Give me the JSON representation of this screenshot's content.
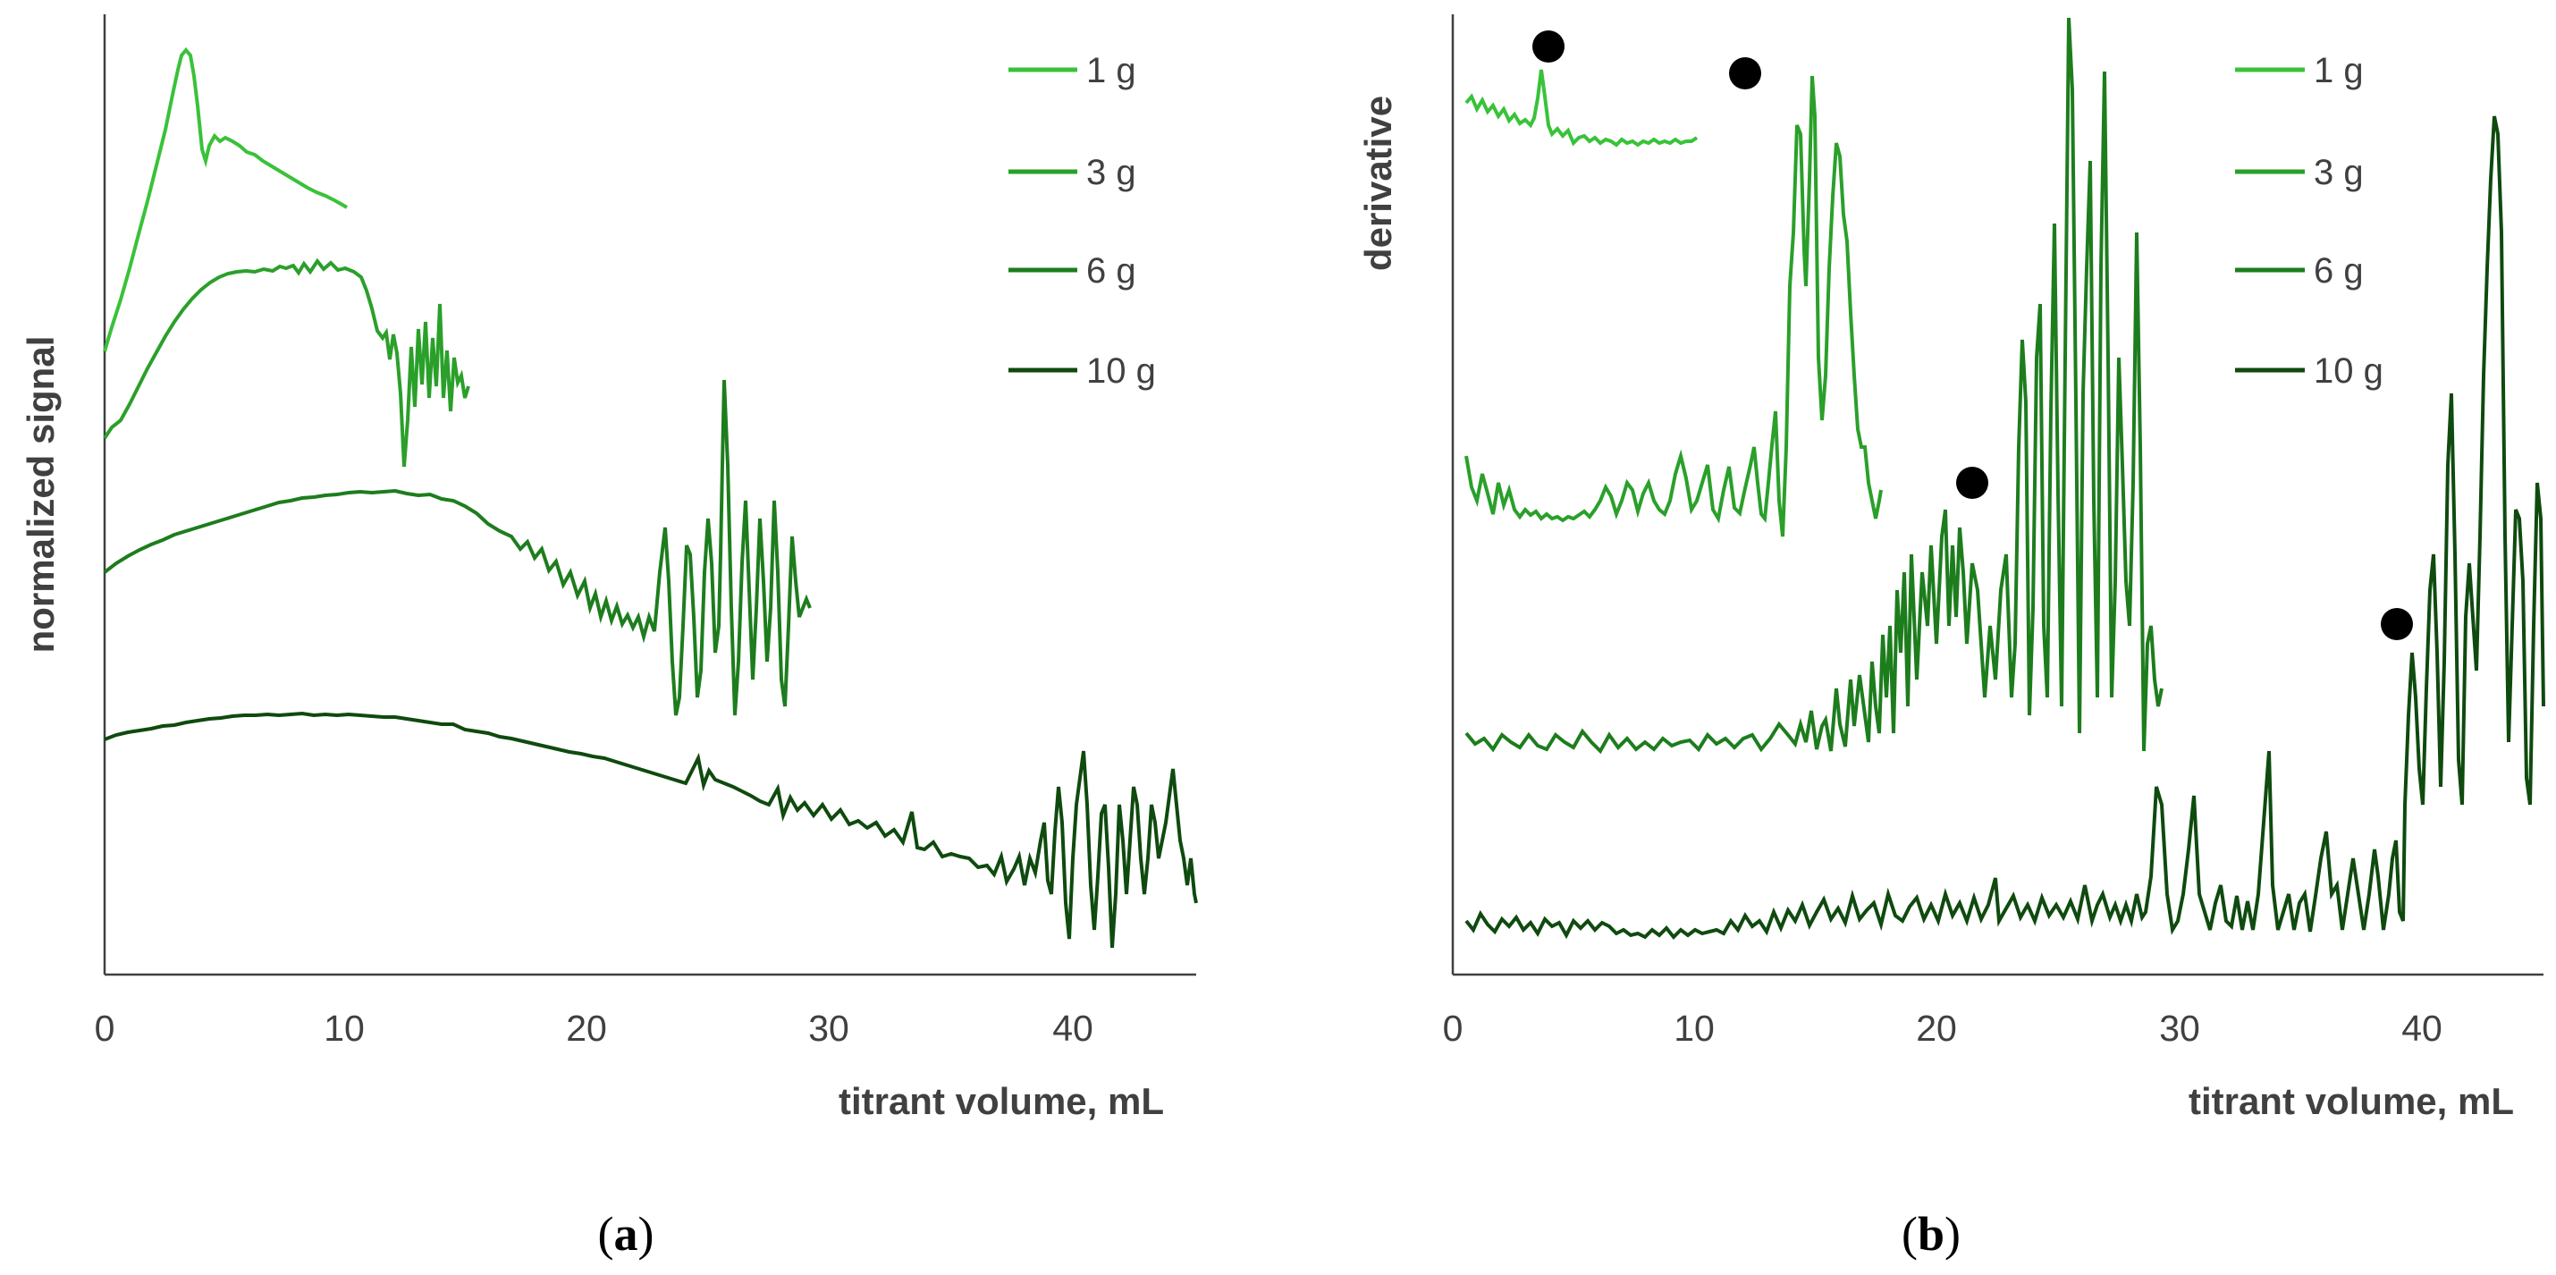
{
  "chart_data": [
    {
      "id": "a",
      "type": "line",
      "caption": "(a)",
      "ylabel": "normalized signal",
      "xlabel": "titrant volume, mL",
      "x_ticks": [
        0,
        10,
        20,
        30,
        40
      ],
      "xlim": [
        0,
        45
      ],
      "ylim": [
        0,
        100
      ],
      "series": [
        {
          "name": "1 g",
          "color": "#39c239",
          "x": [
            0,
            1,
            2,
            3,
            3.4,
            3.8,
            4.2,
            5,
            6,
            7,
            8,
            9,
            10
          ],
          "y": [
            65,
            79,
            89,
            96,
            97,
            93,
            87,
            88,
            86,
            85,
            83,
            81,
            80
          ]
        },
        {
          "name": "3 g",
          "color": "#2aa02a",
          "x": [
            0,
            1,
            2,
            3,
            4,
            5,
            6,
            7,
            8,
            9,
            10,
            10.6,
            11.2,
            12
          ],
          "y": [
            56,
            62,
            68,
            72,
            74,
            74,
            75,
            74.5,
            75,
            74.5,
            74.5,
            73,
            68,
            65
          ]
        },
        {
          "name": "6 g",
          "color": "#1d7d1d",
          "x": [
            0,
            2,
            4,
            6,
            8,
            10,
            12,
            14,
            16,
            18,
            20,
            22,
            23.5
          ],
          "y": [
            42,
            45,
            47,
            48.5,
            49.5,
            50,
            50,
            49.5,
            47.5,
            44.5,
            41.5,
            38,
            37
          ]
        },
        {
          "name": "10 g",
          "color": "#0f4a0f",
          "x": [
            0,
            2,
            5,
            10,
            15,
            20,
            25,
            30,
            35,
            38,
            40
          ],
          "y": [
            25,
            26,
            26.5,
            26.5,
            25.5,
            23.5,
            21,
            18,
            14,
            11,
            10
          ]
        }
      ],
      "legend_position": "top-right"
    },
    {
      "id": "b",
      "type": "line",
      "caption": "(b)",
      "ylabel": "derivative",
      "xlabel": "titrant volume, mL",
      "x_ticks": [
        0,
        10,
        20,
        30,
        40
      ],
      "xlim": [
        0,
        45
      ],
      "ylim": [
        0,
        100
      ],
      "series": [
        {
          "name": "1 g",
          "color": "#39c239",
          "x": [
            0,
            2,
            3,
            3.5,
            4,
            4.5,
            5,
            7,
            10
          ],
          "y": [
            91,
            90,
            89,
            89.5,
            95,
            89,
            87.5,
            87.5,
            87
          ]
        },
        {
          "name": "3 g",
          "color": "#2aa02a",
          "x": [
            0,
            2,
            4,
            6,
            8,
            10,
            11
          ],
          "y": [
            52,
            48,
            47,
            48.5,
            50,
            51,
            50
          ]
        },
        {
          "name": "6 g",
          "color": "#1d7d1d",
          "x": [
            0,
            3,
            6,
            9,
            12,
            15,
            17
          ],
          "y": [
            25,
            26,
            25,
            26,
            25.5,
            27,
            29
          ]
        },
        {
          "name": "10 g",
          "color": "#0f4a0f",
          "x": [
            0,
            5,
            10,
            15,
            20,
            25,
            28
          ],
          "y": [
            6,
            5,
            4.5,
            6,
            7,
            7.5,
            8
          ]
        }
      ],
      "markers": [
        {
          "x": 4.0,
          "y": 97
        },
        {
          "x": 12.0,
          "y": 94
        },
        {
          "x": 21.3,
          "y": 52
        },
        {
          "x": 38.6,
          "y": 37
        }
      ],
      "legend_position": "top-right"
    }
  ]
}
